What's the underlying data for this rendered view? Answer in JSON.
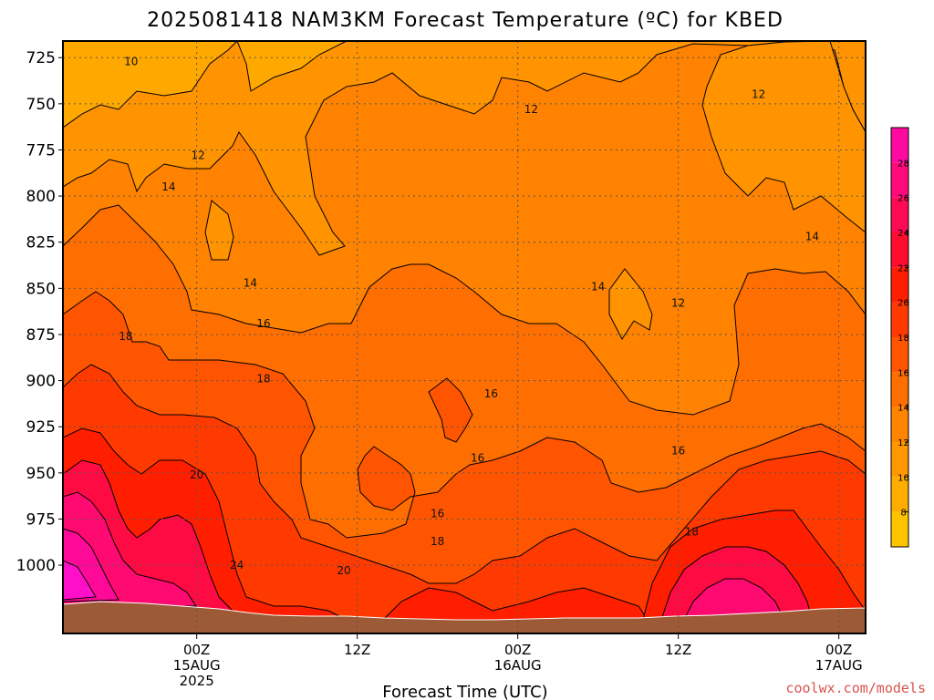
{
  "chart_data": {
    "type": "heatmap",
    "title": "2025081418 NAM3KM Forecast Temperature (ºC) for KBED",
    "xlabel": "Forecast Time (UTC)",
    "ylabel": "",
    "y_scale": "pressure (inverted)",
    "y_range": [
      1037,
      716
    ],
    "y_ticks": [
      725,
      750,
      775,
      800,
      825,
      850,
      875,
      900,
      925,
      950,
      975,
      1000
    ],
    "x_range_hours": [
      -10,
      50
    ],
    "x_ticks": [
      {
        "hour": 0,
        "lines": [
          "00Z",
          "15AUG",
          "2025"
        ]
      },
      {
        "hour": 12,
        "lines": [
          "12Z"
        ]
      },
      {
        "hour": 24,
        "lines": [
          "00Z",
          "16AUG"
        ]
      },
      {
        "hour": 36,
        "lines": [
          "12Z"
        ]
      },
      {
        "hour": 48,
        "lines": [
          "00Z",
          "17AUG"
        ]
      }
    ],
    "grid": true,
    "colorbar": {
      "levels": [
        6,
        8,
        10,
        12,
        14,
        16,
        18,
        20,
        22,
        24,
        26,
        28,
        30
      ],
      "tick_labels": [
        8,
        10,
        12,
        14,
        16,
        18,
        20,
        22,
        24,
        26,
        28
      ],
      "colors": [
        "#ffc400",
        "#ffae00",
        "#ff9800",
        "#ff8500",
        "#ff6e00",
        "#ff5500",
        "#ff3a00",
        "#ff1e00",
        "#ff0d2e",
        "#ff0b55",
        "#ff0a7a",
        "#ff0aa0",
        "#ff10c8"
      ]
    },
    "contour_labels": [
      {
        "value": "10",
        "h": -4.9,
        "p": 727
      },
      {
        "value": "12",
        "h": 0.1,
        "p": 778
      },
      {
        "value": "14",
        "h": -2.1,
        "p": 795
      },
      {
        "value": "14",
        "h": 4.0,
        "p": 847
      },
      {
        "value": "16",
        "h": 5.0,
        "p": 869
      },
      {
        "value": "18",
        "h": -5.3,
        "p": 876
      },
      {
        "value": "18",
        "h": 5.0,
        "p": 899
      },
      {
        "value": "20",
        "h": 0.0,
        "p": 951
      },
      {
        "value": "24",
        "h": 3.0,
        "p": 1000
      },
      {
        "value": "20",
        "h": 11.0,
        "p": 1003
      },
      {
        "value": "12",
        "h": 25.0,
        "p": 753
      },
      {
        "value": "16",
        "h": 22.0,
        "p": 907
      },
      {
        "value": "16",
        "h": 21.0,
        "p": 942
      },
      {
        "value": "16",
        "h": 18.0,
        "p": 972
      },
      {
        "value": "18",
        "h": 18.0,
        "p": 987
      },
      {
        "value": "14",
        "h": 30.0,
        "p": 849
      },
      {
        "value": "12",
        "h": 36.0,
        "p": 858
      },
      {
        "value": "16",
        "h": 36.0,
        "p": 938
      },
      {
        "value": "18",
        "h": 37.0,
        "p": 982
      },
      {
        "value": "12",
        "h": 42.0,
        "p": 745
      },
      {
        "value": "14",
        "h": 46.0,
        "p": 822
      }
    ],
    "credit": "coolwx.com/models"
  }
}
